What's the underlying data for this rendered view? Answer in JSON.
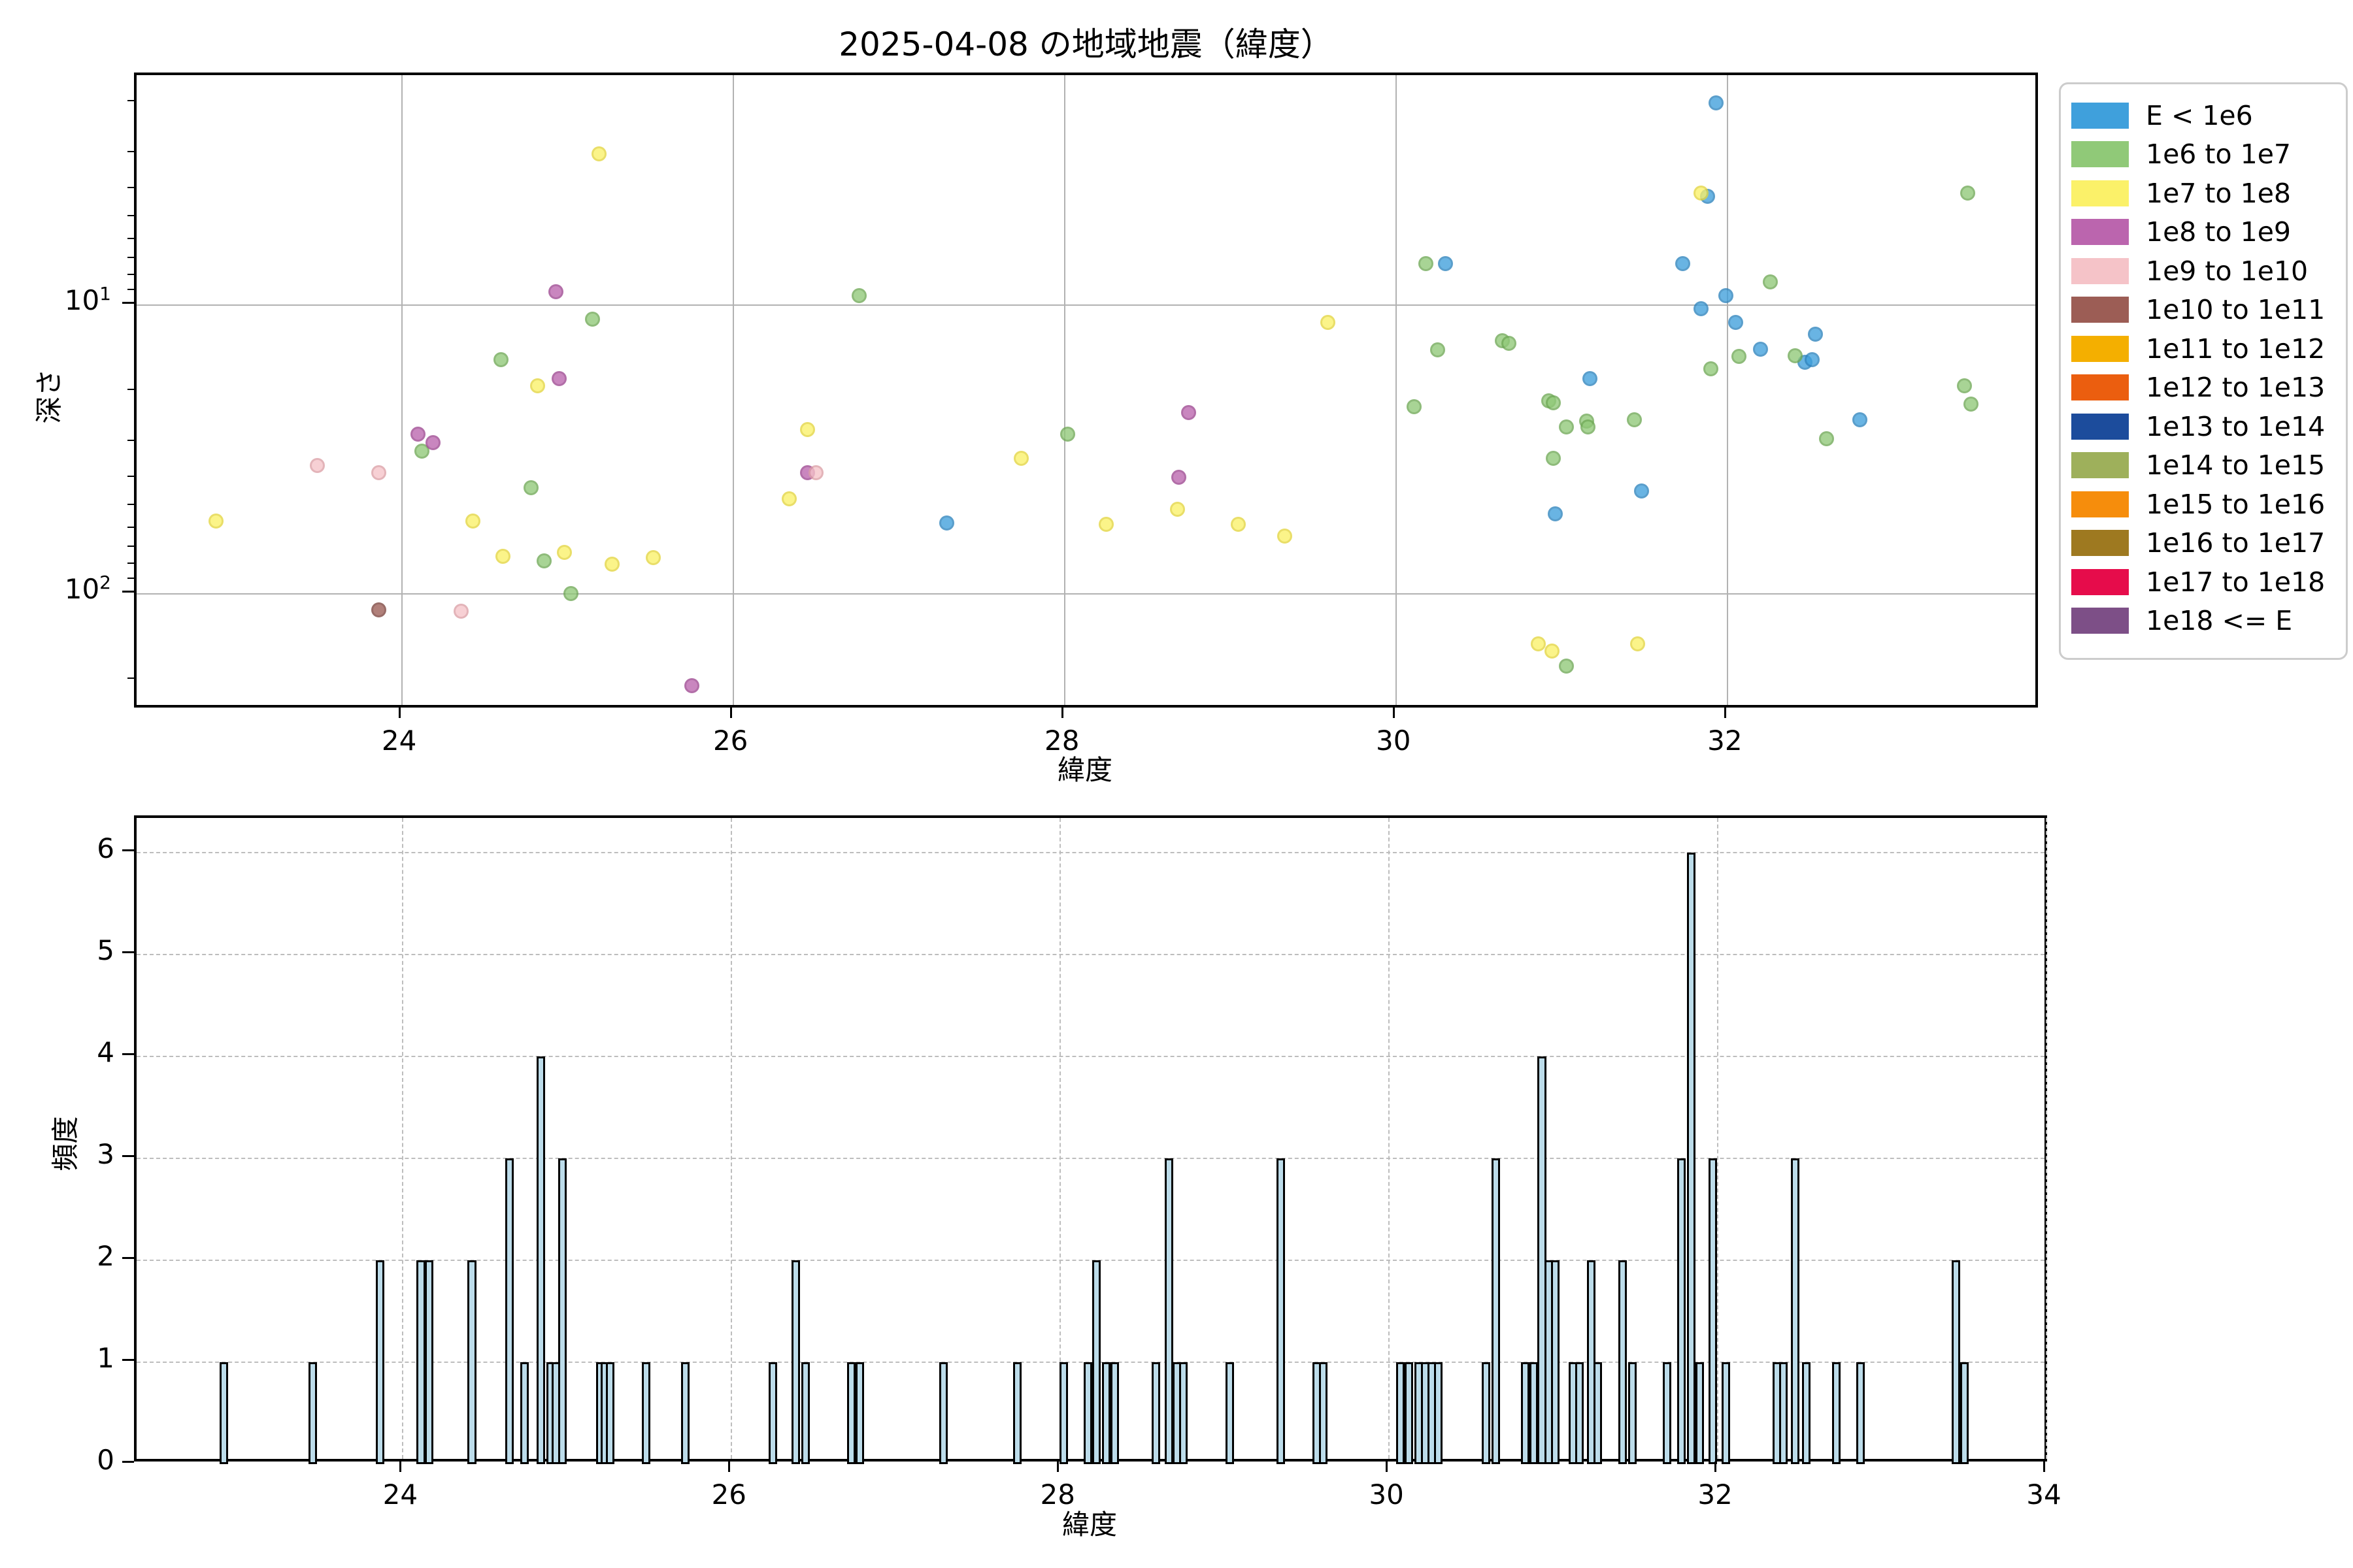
{
  "title": "2025-04-08 の地域地震（緯度）",
  "scatter": {
    "xlabel": "緯度",
    "ylabel": "深さ",
    "xlim": [
      22.4,
      33.89
    ],
    "ylim_depth_log_inverted": [
      1.6,
      253
    ],
    "xticks": [
      24,
      26,
      28,
      30,
      32
    ],
    "yticks_major": [
      {
        "base": "10",
        "exp": "1",
        "value": 10
      },
      {
        "base": "10",
        "exp": "2",
        "value": 100
      }
    ],
    "yticks_minor": [
      2,
      3,
      4,
      5,
      6,
      7,
      8,
      9,
      20,
      30,
      40,
      50,
      60,
      70,
      80,
      90,
      200
    ],
    "grid": true
  },
  "histogram": {
    "xlabel": "緯度",
    "ylabel": "頻度",
    "xlim": [
      22.38,
      34.02
    ],
    "ylim": [
      0,
      6.34
    ],
    "xticks": [
      24,
      26,
      28,
      30,
      32,
      34
    ],
    "yticks": [
      0,
      1,
      2,
      3,
      4,
      5,
      6
    ],
    "bar_width_lat": 0.052,
    "bar_fill": "#bcdcea",
    "bar_edge": "#000000",
    "grid": "dashed"
  },
  "legend": {
    "entries": [
      {
        "label": "E < 1e6",
        "color": "#3fa0dc"
      },
      {
        "label": "1e6 to 1e7",
        "color": "#90c978"
      },
      {
        "label": "1e7 to 1e8",
        "color": "#fbf169"
      },
      {
        "label": "1e8 to 1e9",
        "color": "#bb65ae"
      },
      {
        "label": "1e9 to 1e10",
        "color": "#f5c3c8"
      },
      {
        "label": "1e10 to 1e11",
        "color": "#9c5d55"
      },
      {
        "label": "1e11 to 1e12",
        "color": "#f4af00"
      },
      {
        "label": "1e12 to 1e13",
        "color": "#eb5e0f"
      },
      {
        "label": "1e13 to 1e14",
        "color": "#1c4c9c"
      },
      {
        "label": "1e14 to 1e15",
        "color": "#9eb05b"
      },
      {
        "label": "1e15 to 1e16",
        "color": "#f68d0c"
      },
      {
        "label": "1e16 to 1e17",
        "color": "#9e7920"
      },
      {
        "label": "1e17 to 1e18",
        "color": "#e60c4b"
      },
      {
        "label": "1e18 <= E",
        "color": "#7d4f87"
      }
    ]
  },
  "chart_data": [
    {
      "type": "scatter",
      "title": "2025-04-08 の地域地震（緯度）",
      "xlabel": "緯度",
      "ylabel": "深さ",
      "x_is_latitude": true,
      "y_is_depth_log_inverted": true,
      "series": [
        {
          "name": "E < 1e6",
          "face": "#3fa0dc",
          "edge": "#2d83bd",
          "points": [
            [
              27.29,
              57
            ],
            [
              30.3,
              7.2
            ],
            [
              30.96,
              53
            ],
            [
              31.17,
              18
            ],
            [
              31.48,
              44
            ],
            [
              31.73,
              7.2
            ],
            [
              31.84,
              10.3
            ],
            [
              31.88,
              4.2
            ],
            [
              31.93,
              2.0
            ],
            [
              31.99,
              9.3
            ],
            [
              32.05,
              11.5
            ],
            [
              32.2,
              14.2
            ],
            [
              32.47,
              15.8
            ],
            [
              32.51,
              15.5
            ],
            [
              32.53,
              12.6
            ],
            [
              32.8,
              25
            ]
          ]
        },
        {
          "name": "1e6 to 1e7",
          "face": "#90c978",
          "edge": "#6fa956",
          "points": [
            [
              24.12,
              32
            ],
            [
              24.6,
              15.5
            ],
            [
              24.78,
              43
            ],
            [
              24.86,
              77
            ],
            [
              25.02,
              100
            ],
            [
              25.15,
              11.2
            ],
            [
              26.76,
              9.3
            ],
            [
              28.02,
              28
            ],
            [
              30.11,
              22.5
            ],
            [
              30.18,
              7.2
            ],
            [
              30.25,
              14.3
            ],
            [
              30.64,
              13.3
            ],
            [
              30.68,
              13.6
            ],
            [
              30.92,
              21.5
            ],
            [
              30.95,
              21.8
            ],
            [
              30.95,
              34
            ],
            [
              31.03,
              26.4
            ],
            [
              31.03,
              178
            ],
            [
              31.15,
              25.3
            ],
            [
              31.16,
              26.4
            ],
            [
              31.44,
              25
            ],
            [
              31.9,
              16.6
            ],
            [
              32.07,
              15.1
            ],
            [
              32.26,
              8.3
            ],
            [
              32.41,
              15.0
            ],
            [
              32.6,
              29
            ],
            [
              33.43,
              19
            ],
            [
              33.45,
              4.1
            ],
            [
              33.47,
              22
            ]
          ]
        },
        {
          "name": "1e7 to 1e8",
          "face": "#fbf169",
          "edge": "#e3d53e",
          "points": [
            [
              22.88,
              56
            ],
            [
              24.43,
              56
            ],
            [
              24.61,
              74
            ],
            [
              24.82,
              19
            ],
            [
              24.98,
              72
            ],
            [
              25.19,
              3.0
            ],
            [
              25.27,
              79
            ],
            [
              25.52,
              75
            ],
            [
              26.34,
              47
            ],
            [
              26.45,
              27
            ],
            [
              27.74,
              34
            ],
            [
              28.25,
              57.5
            ],
            [
              28.68,
              51
            ],
            [
              29.05,
              57.5
            ],
            [
              29.33,
              63
            ],
            [
              29.59,
              11.5
            ],
            [
              30.86,
              149
            ],
            [
              30.94,
              158
            ],
            [
              31.46,
              149
            ],
            [
              31.84,
              4.1
            ]
          ]
        },
        {
          "name": "1e8 to 1e9",
          "face": "#bb65ae",
          "edge": "#9d4690",
          "points": [
            [
              24.1,
              28
            ],
            [
              24.19,
              30
            ],
            [
              24.93,
              9.0
            ],
            [
              24.95,
              18
            ],
            [
              25.75,
              208
            ],
            [
              26.45,
              38
            ],
            [
              28.69,
              39.5
            ],
            [
              28.75,
              23.6
            ]
          ]
        },
        {
          "name": "1e9 to 1e10",
          "face": "#f5c3c8",
          "edge": "#dc9fa6",
          "points": [
            [
              23.49,
              36
            ],
            [
              23.86,
              38
            ],
            [
              24.36,
              115
            ],
            [
              26.5,
              38
            ]
          ]
        },
        {
          "name": "1e10 to 1e11",
          "face": "#9c5d55",
          "edge": "#7c443d",
          "points": [
            [
              23.86,
              114
            ]
          ]
        }
      ],
      "xlim": [
        22.4,
        33.89
      ],
      "ylim": [
        1.6,
        253
      ],
      "xticks": [
        24,
        26,
        28,
        30,
        32
      ],
      "yticks": [
        10,
        100
      ]
    },
    {
      "type": "bar",
      "title": "",
      "xlabel": "緯度",
      "ylabel": "頻度",
      "xlim": [
        22.38,
        34.02
      ],
      "ylim": [
        0,
        6.34
      ],
      "bars": [
        [
          22.91,
          1
        ],
        [
          23.45,
          1
        ],
        [
          23.86,
          2
        ],
        [
          24.11,
          2
        ],
        [
          24.16,
          2
        ],
        [
          24.42,
          2
        ],
        [
          24.65,
          3
        ],
        [
          24.74,
          1
        ],
        [
          24.84,
          4
        ],
        [
          24.9,
          1
        ],
        [
          24.93,
          1
        ],
        [
          24.97,
          3
        ],
        [
          25.2,
          1
        ],
        [
          25.23,
          1
        ],
        [
          25.26,
          1
        ],
        [
          25.48,
          1
        ],
        [
          25.72,
          1
        ],
        [
          26.25,
          1
        ],
        [
          26.39,
          2
        ],
        [
          26.45,
          1
        ],
        [
          26.73,
          1
        ],
        [
          26.78,
          1
        ],
        [
          27.29,
          1
        ],
        [
          27.74,
          1
        ],
        [
          28.02,
          1
        ],
        [
          28.17,
          1
        ],
        [
          28.22,
          2
        ],
        [
          28.28,
          1
        ],
        [
          28.33,
          1
        ],
        [
          28.58,
          1
        ],
        [
          28.66,
          3
        ],
        [
          28.71,
          1
        ],
        [
          28.75,
          1
        ],
        [
          29.03,
          1
        ],
        [
          29.34,
          3
        ],
        [
          29.56,
          1
        ],
        [
          29.6,
          1
        ],
        [
          30.07,
          1
        ],
        [
          30.12,
          1
        ],
        [
          30.18,
          1
        ],
        [
          30.22,
          1
        ],
        [
          30.26,
          1
        ],
        [
          30.3,
          1
        ],
        [
          30.59,
          1
        ],
        [
          30.65,
          3
        ],
        [
          30.83,
          1
        ],
        [
          30.88,
          1
        ],
        [
          30.93,
          4
        ],
        [
          30.97,
          2
        ],
        [
          31.01,
          2
        ],
        [
          31.12,
          1
        ],
        [
          31.16,
          1
        ],
        [
          31.23,
          2
        ],
        [
          31.27,
          1
        ],
        [
          31.42,
          2
        ],
        [
          31.48,
          1
        ],
        [
          31.69,
          1
        ],
        [
          31.78,
          3
        ],
        [
          31.84,
          6
        ],
        [
          31.89,
          1
        ],
        [
          31.97,
          3
        ],
        [
          32.05,
          1
        ],
        [
          32.36,
          1
        ],
        [
          32.4,
          1
        ],
        [
          32.47,
          3
        ],
        [
          32.54,
          1
        ],
        [
          32.72,
          1
        ],
        [
          32.87,
          1
        ],
        [
          33.45,
          2
        ],
        [
          33.5,
          1
        ]
      ]
    }
  ]
}
